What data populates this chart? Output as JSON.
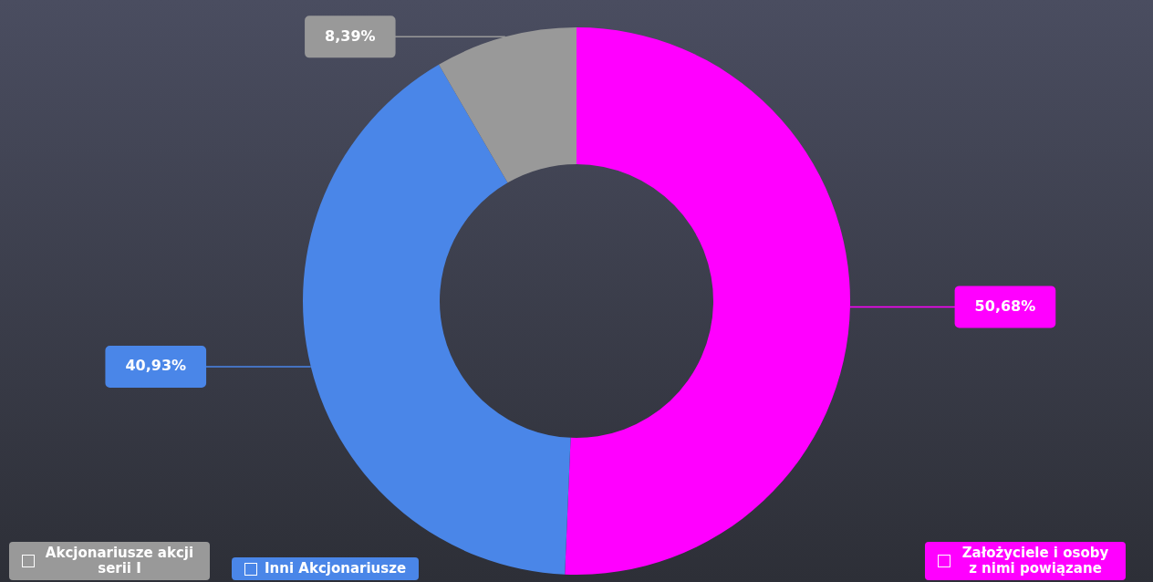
{
  "chart_data": {
    "type": "donut",
    "categories": [
      "Założyciele i osoby z nimi powiązane",
      "Inni Akcjonariusze",
      "Akcjonariusze akcji serii I"
    ],
    "values": [
      50.68,
      40.93,
      8.39
    ],
    "colors": [
      "#ff00ff",
      "#4a86e8",
      "#999999"
    ],
    "value_labels": [
      "50,68%",
      "40,93%",
      "8,39%"
    ],
    "legend": "bottom"
  }
}
